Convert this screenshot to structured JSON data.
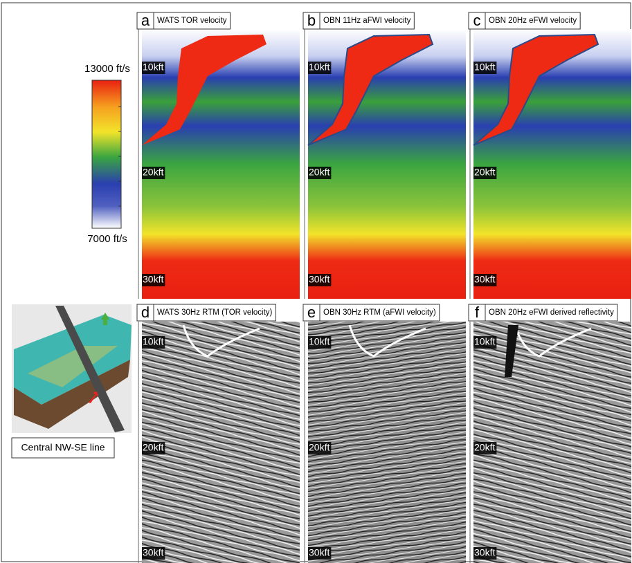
{
  "colorbar": {
    "max_label": "13000 ft/s",
    "min_label": "7000 ft/s"
  },
  "panels": [
    {
      "letter": "a",
      "title": "WATS TOR velocity",
      "depth_labels": [
        "10kft",
        "20kft",
        "30kft"
      ]
    },
    {
      "letter": "b",
      "title": "OBN 11Hz aFWI velocity",
      "depth_labels": [
        "10kft",
        "20kft",
        "30kft"
      ]
    },
    {
      "letter": "c",
      "title": "OBN 20Hz eFWI velocity",
      "depth_labels": [
        "10kft",
        "20kft",
        "30kft"
      ]
    },
    {
      "letter": "d",
      "title": "WATS 30Hz RTM (TOR velocity)",
      "depth_labels": [
        "10kft",
        "20kft",
        "30kft"
      ]
    },
    {
      "letter": "e",
      "title": "OBN 30Hz RTM (aFWI velocity)",
      "depth_labels": [
        "10kft",
        "20kft",
        "30kft"
      ]
    },
    {
      "letter": "f",
      "title": "OBN 20Hz eFWI derived reflectivity",
      "depth_labels": [
        "10kft",
        "20kft",
        "30kft"
      ]
    }
  ],
  "inset": {
    "caption": "Central NW-SE line"
  }
}
